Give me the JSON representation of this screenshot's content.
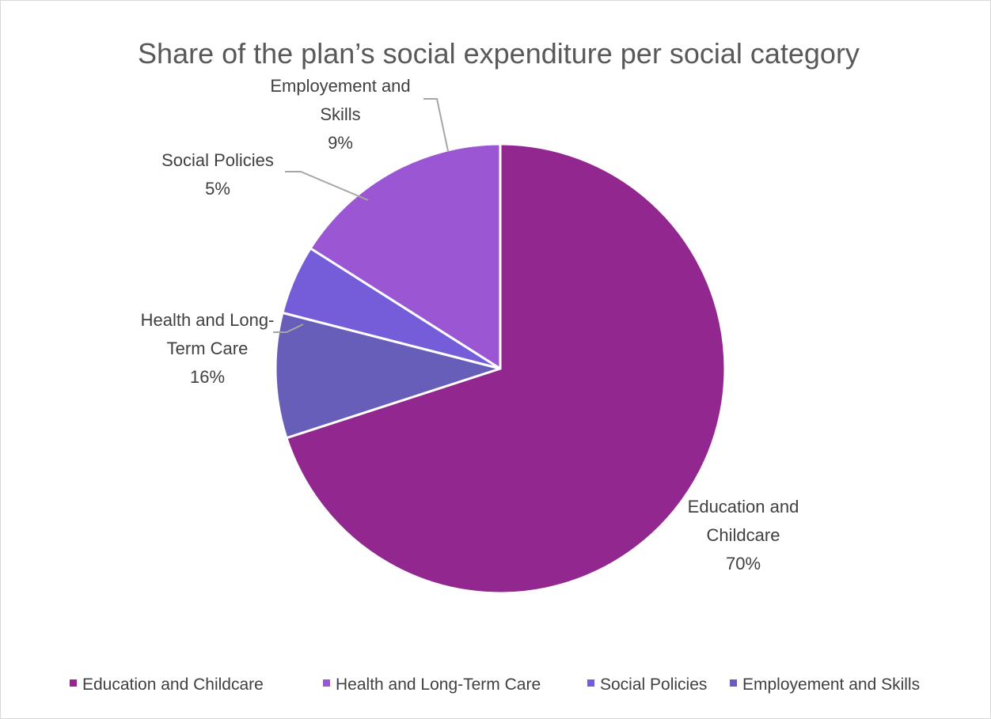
{
  "chart_data": {
    "type": "pie",
    "title": "Share of the plan’s social expenditure per social category",
    "categories": [
      "Education and Childcare",
      "Health and Long-Term Care",
      "Social Policies",
      "Employement and Skills"
    ],
    "values": [
      70,
      16,
      5,
      9
    ],
    "value_labels": [
      "70%",
      "16%",
      "5%",
      "9%"
    ],
    "data_label_lines": [
      [
        "Education and",
        "Childcare"
      ],
      [
        "Health and Long-",
        "Term Care"
      ],
      [
        "Social Policies"
      ],
      [
        "Employement and",
        "Skills"
      ]
    ],
    "colors": [
      "#92278f",
      "#9b57d3",
      "#755dd9",
      "#665eb8"
    ],
    "legend_position": "bottom",
    "start_angle": "12 o'clock",
    "direction": "clockwise"
  }
}
